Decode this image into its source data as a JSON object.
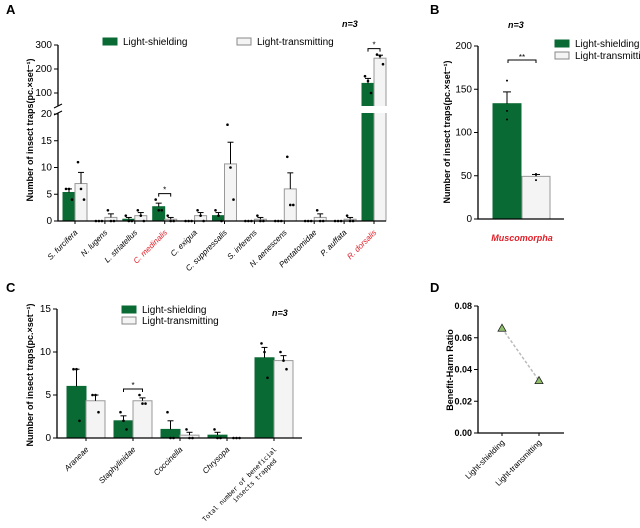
{
  "colors": {
    "shielding": "#0a6a34",
    "transmitting": "#f4f4f4",
    "highlight": "#e0202a",
    "line": "#bbbbbb"
  },
  "chart_data": [
    {
      "panel": "A",
      "type": "bar",
      "n_label": "n=3",
      "ylabel": "Number of insect traps(pc.×set⁻¹)",
      "legend": [
        "Light-shielding",
        "Light-transmitting"
      ],
      "legend_placement": "top",
      "y_axis": {
        "lower": [
          0,
          20
        ],
        "upper": [
          100,
          300
        ],
        "broken": true,
        "lower_ticks": [
          0,
          5,
          10,
          15,
          20
        ],
        "upper_ticks": [
          100,
          200,
          300
        ]
      },
      "categories": [
        "S. furcifera",
        "N. lugens",
        "L. striatellus",
        "C. medinalis",
        "C. exigua",
        "C. suppressalis",
        "S. inferens",
        "N. aenescens",
        "Pentatomidae",
        "P. auffata",
        "R. dorsalis"
      ],
      "highlighted": [
        "C. medinalis",
        "R. dorsalis"
      ],
      "series": [
        {
          "name": "Light-shielding",
          "values": [
            5.33,
            0,
            0.33,
            2.67,
            0,
            1,
            0,
            0,
            0,
            0,
            140
          ],
          "points": [
            [
              6,
              6,
              4
            ],
            [
              0,
              0,
              0
            ],
            [
              1,
              0,
              0
            ],
            [
              4,
              2,
              2
            ],
            [
              0,
              0,
              0
            ],
            [
              2,
              1,
              0
            ],
            [
              0,
              0,
              0
            ],
            [
              0,
              0,
              0
            ],
            [
              0,
              0,
              0
            ],
            [
              0,
              0,
              0
            ],
            [
              170,
              150,
              100
            ]
          ]
        },
        {
          "name": "Light-transmitting",
          "values": [
            7,
            0.67,
            1,
            0.33,
            1,
            10.67,
            0.33,
            6,
            0.67,
            0.33,
            245
          ],
          "points": [
            [
              11,
              6,
              4
            ],
            [
              2,
              0,
              0
            ],
            [
              2,
              1,
              0
            ],
            [
              1,
              0,
              0
            ],
            [
              2,
              1,
              0
            ],
            [
              18,
              10,
              4
            ],
            [
              1,
              0,
              0
            ],
            [
              12,
              3,
              3
            ],
            [
              2,
              0,
              0
            ],
            [
              1,
              0,
              0
            ],
            [
              260,
              255,
              220
            ]
          ]
        }
      ],
      "significance": [
        {
          "category": "C. medinalis",
          "label": "*"
        },
        {
          "category": "R. dorsalis",
          "label": "*"
        }
      ]
    },
    {
      "panel": "B",
      "type": "bar",
      "n_label": "n=3",
      "ylabel": "Number of insect traps(pc.×set⁻¹)",
      "legend": [
        "Light-shielding",
        "Light-transmitting"
      ],
      "legend_placement": "right",
      "ylim": [
        0,
        200
      ],
      "yticks": [
        0,
        50,
        100,
        150,
        200
      ],
      "categories": [
        "Muscomorpha"
      ],
      "highlighted": [
        "Muscomorpha"
      ],
      "series": [
        {
          "name": "Light-shielding",
          "values": [
            133.3
          ],
          "points": [
            [
              160,
              125,
              115
            ]
          ]
        },
        {
          "name": "Light-transmitting",
          "values": [
            49.3
          ],
          "points": [
            [
              52,
              51,
              45
            ]
          ]
        }
      ],
      "significance": [
        {
          "category": "Muscomorpha",
          "label": "**"
        }
      ]
    },
    {
      "panel": "C",
      "type": "bar",
      "n_label": "n=3",
      "ylabel": "Number of insect traps(pc.×set⁻¹)",
      "legend": [
        "Light-shielding",
        "Light-transmitting"
      ],
      "legend_placement": "top",
      "ylim": [
        0,
        15
      ],
      "yticks": [
        0,
        5,
        10,
        15
      ],
      "categories": [
        "Araneae",
        "Staphylinidae",
        "Coccinella",
        "Chrysopa",
        "Total number of beneficial insects trapped"
      ],
      "series": [
        {
          "name": "Light-shielding",
          "values": [
            6,
            2,
            1,
            0.33,
            9.33
          ],
          "points": [
            [
              8,
              8,
              2
            ],
            [
              3,
              2,
              1
            ],
            [
              3,
              0,
              0
            ],
            [
              1,
              0,
              0
            ],
            [
              11,
              10,
              7
            ]
          ]
        },
        {
          "name": "Light-transmitting",
          "values": [
            4.33,
            4.33,
            0.33,
            0,
            9
          ],
          "points": [
            [
              5,
              5,
              3
            ],
            [
              5,
              4,
              4
            ],
            [
              1,
              0,
              0
            ],
            [
              0,
              0,
              0
            ],
            [
              10,
              9,
              8
            ]
          ]
        }
      ],
      "significance": [
        {
          "category": "Staphylinidae",
          "label": "*"
        }
      ]
    },
    {
      "panel": "D",
      "type": "scatter",
      "ylabel": "Benefit-Harm Ratio",
      "ylim": [
        0,
        0.08
      ],
      "yticks": [
        "0.00",
        "0.02",
        "0.04",
        "0.06",
        "0.08"
      ],
      "categories": [
        "Light-shielding",
        "Light-transmitting"
      ],
      "values": [
        0.066,
        0.033
      ],
      "connected": "dashed"
    }
  ]
}
